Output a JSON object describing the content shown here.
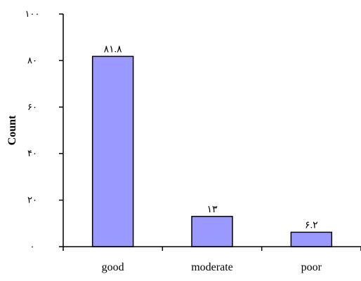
{
  "chart_data": {
    "type": "bar",
    "categories": [
      "good",
      "moderate",
      "poor"
    ],
    "values": [
      81.8,
      13,
      6.2
    ],
    "value_labels": [
      "٨١.٨",
      "١٣",
      "۶.٢"
    ],
    "ylabel": "Count",
    "xlabel": "",
    "ylim": [
      0,
      100
    ],
    "yticks": [
      0,
      20,
      40,
      60,
      80,
      100
    ],
    "ytick_labels": [
      "٠",
      "٢٠",
      "۴٠",
      "۶٠",
      "٨٠",
      "١٠٠"
    ],
    "grid": false,
    "legend": "none",
    "bar_color": "#9999ff",
    "bar_edge_color": "#000000"
  }
}
